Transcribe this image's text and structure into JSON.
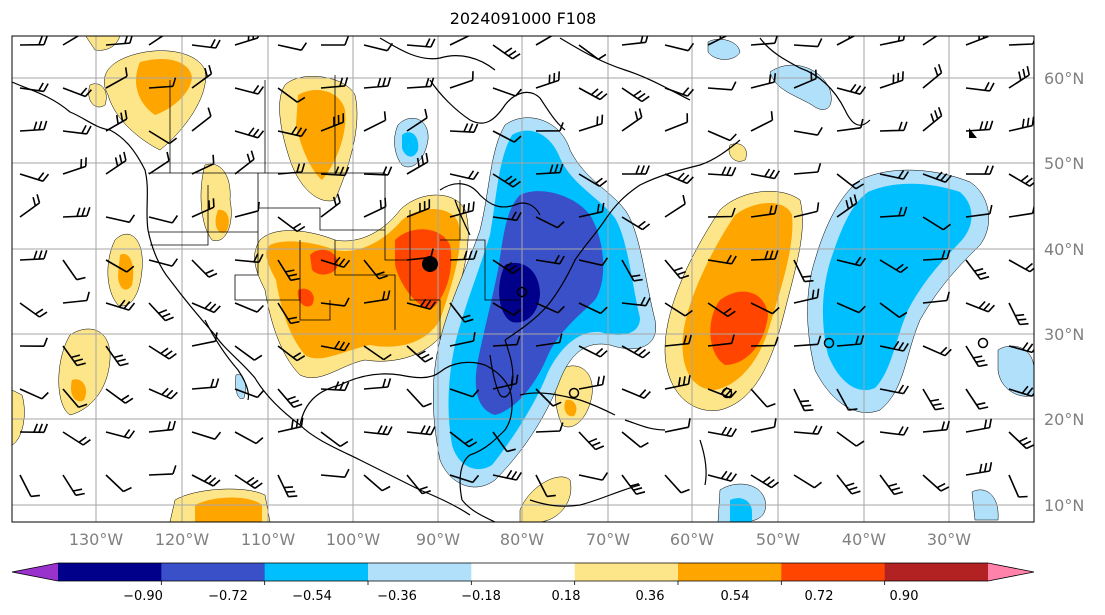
{
  "title": "2024091000 F108",
  "map": {
    "lon_labels": [
      "130°W",
      "120°W",
      "110°W",
      "100°W",
      "90°W",
      "80°W",
      "70°W",
      "60°W",
      "50°W",
      "40°W",
      "30°W"
    ],
    "lat_labels": [
      "60°N",
      "50°N",
      "40°N",
      "30°N",
      "20°N",
      "10°N"
    ],
    "gridline_color": "#a6a6a6"
  },
  "colorbar": {
    "tick_labels": [
      "−0.90",
      "−0.72",
      "−0.54",
      "−0.36",
      "−0.18",
      "0.18",
      "0.36",
      "0.54",
      "0.72",
      "0.90"
    ],
    "colors": [
      "#9932cc",
      "#00008b",
      "#3a50c8",
      "#00bfff",
      "#b0e0fa",
      "#ffffff",
      "#fde68a",
      "#ffa500",
      "#ff4500",
      "#b22222",
      "#ff82ab"
    ],
    "extend": "both"
  },
  "markers": {
    "dot": "filled circle",
    "open": "open circle",
    "triangle": "flag"
  }
}
